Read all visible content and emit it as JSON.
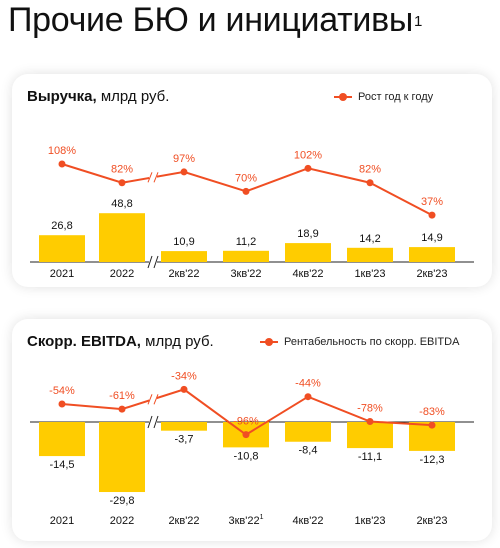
{
  "page": {
    "title": "Прочие БЮ и инициативы",
    "title_sup": "1"
  },
  "colors": {
    "bar": "#ffcc00",
    "line": "#f04e23",
    "axis": "#222222",
    "pct_text": "#f04e23"
  },
  "chart_data": [
    {
      "type": "bar",
      "title": "Выручка, млрд руб.",
      "title_bold": "Выручка,",
      "title_rest": " млрд руб.",
      "categories": [
        "2021",
        "2022",
        "2кв'22",
        "3кв'22",
        "4кв'22",
        "1кв'23",
        "2кв'23"
      ],
      "category_sup": [
        "",
        "",
        "",
        "",
        "",
        "",
        ""
      ],
      "series": [
        {
          "type": "bar",
          "values": [
            26.8,
            48.8,
            10.9,
            11.2,
            18.9,
            14.2,
            14.9
          ],
          "labels": [
            "26,8",
            "48,8",
            "10,9",
            "11,2",
            "18,9",
            "14,2",
            "14,9"
          ]
        },
        {
          "type": "line",
          "name": "Рост год к году",
          "values": [
            108,
            82,
            97,
            70,
            102,
            82,
            37
          ],
          "labels": [
            "108%",
            "82%",
            "97%",
            "70%",
            "102%",
            "82%",
            "37%"
          ]
        }
      ],
      "axis_break": "between 2022 and 2кв'22",
      "legend_position": "top-right"
    },
    {
      "type": "bar",
      "title": "Скорр. EBITDA, млрд руб.",
      "title_bold": "Скорр. EBITDA,",
      "title_rest": " млрд руб.",
      "categories": [
        "2021",
        "2022",
        "2кв'22",
        "3кв'22",
        "4кв'22",
        "1кв'23",
        "2кв'23"
      ],
      "category_sup": [
        "",
        "",
        "",
        "1",
        "",
        "",
        ""
      ],
      "series": [
        {
          "type": "bar",
          "values": [
            -14.5,
            -29.8,
            -3.7,
            -10.8,
            -8.4,
            -11.1,
            -12.3
          ],
          "labels": [
            "-14,5",
            "-29,8",
            "-3,7",
            "-10,8",
            "-8,4",
            "-11,1",
            "-12,3"
          ]
        },
        {
          "type": "line",
          "name": "Рентабельность по скорр. EBITDA",
          "values": [
            -54,
            -61,
            -34,
            -96,
            -44,
            -78,
            -83
          ],
          "labels": [
            "-54%",
            "-61%",
            "-34%",
            "-96%",
            "-44%",
            "-78%",
            "-83%"
          ]
        }
      ],
      "axis_break": "between 2022 and 2кв'22",
      "legend_position": "top-right"
    }
  ]
}
